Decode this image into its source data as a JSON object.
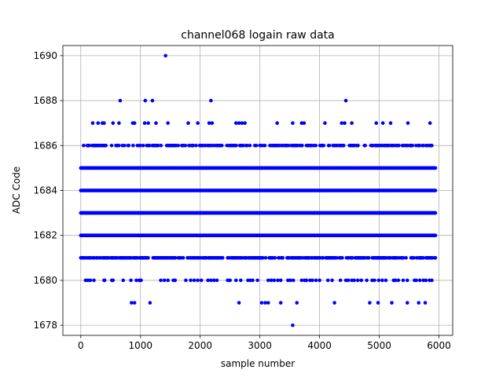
{
  "chart_data": {
    "type": "scatter",
    "title": "channel068 logain raw data",
    "xlabel": "sample number",
    "ylabel": "ADC Code",
    "xlim": [
      -300,
      6230
    ],
    "ylim": [
      1677.55,
      1690.45
    ],
    "xticks": [
      0,
      1000,
      2000,
      3000,
      4000,
      5000,
      6000
    ],
    "yticks": [
      1678,
      1680,
      1682,
      1684,
      1686,
      1688,
      1690
    ],
    "grid": true,
    "marker_color": "#0000ff",
    "n_samples": 5950,
    "dense_levels": [
      1681,
      1682,
      1683,
      1684,
      1685,
      1686
    ],
    "sparse_points": {
      "1690": [
        1420
      ],
      "1688": [
        660,
        1080,
        1200,
        2180,
        4440
      ],
      "1687": [
        200,
        290,
        360,
        390,
        540,
        640,
        870,
        900,
        1070,
        1130,
        1260,
        1460,
        1800,
        1960,
        2150,
        2200,
        2600,
        2650,
        2700,
        2750,
        3290,
        3550,
        3700,
        3740,
        4090,
        4370,
        4420,
        4540,
        4950,
        5060,
        5190,
        5480,
        5850
      ],
      "1680": [
        80,
        120,
        160,
        220,
        390,
        400,
        520,
        540,
        710,
        840,
        930,
        980,
        1010,
        1340,
        1400,
        1460,
        1550,
        1580,
        1760,
        1840,
        1900,
        1960,
        2020,
        2130,
        2180,
        2230,
        2280,
        2460,
        2500,
        2600,
        2680,
        2800,
        2840,
        2880,
        2960,
        3140,
        3190,
        3240,
        3300,
        3350,
        3470,
        3510,
        3560,
        3700,
        3750,
        3780,
        3840,
        3880,
        3940,
        4000,
        4140,
        4210,
        4350,
        4440,
        4480,
        4540,
        4580,
        4640,
        4700,
        4790,
        4880,
        4920,
        4990,
        5050,
        5110,
        5240,
        5270,
        5320,
        5400,
        5470,
        5590,
        5620,
        5680,
        5740,
        5780,
        5840,
        5880
      ],
      "1679": [
        850,
        900,
        1160,
        2650,
        3030,
        3090,
        3140,
        3350,
        3620,
        4250,
        4840,
        4980,
        5210,
        5470,
        5660,
        5770
      ],
      "1678": [
        3550
      ]
    },
    "sparse_level_density": {
      "1686": 0.45,
      "1681": 0.65
    }
  }
}
